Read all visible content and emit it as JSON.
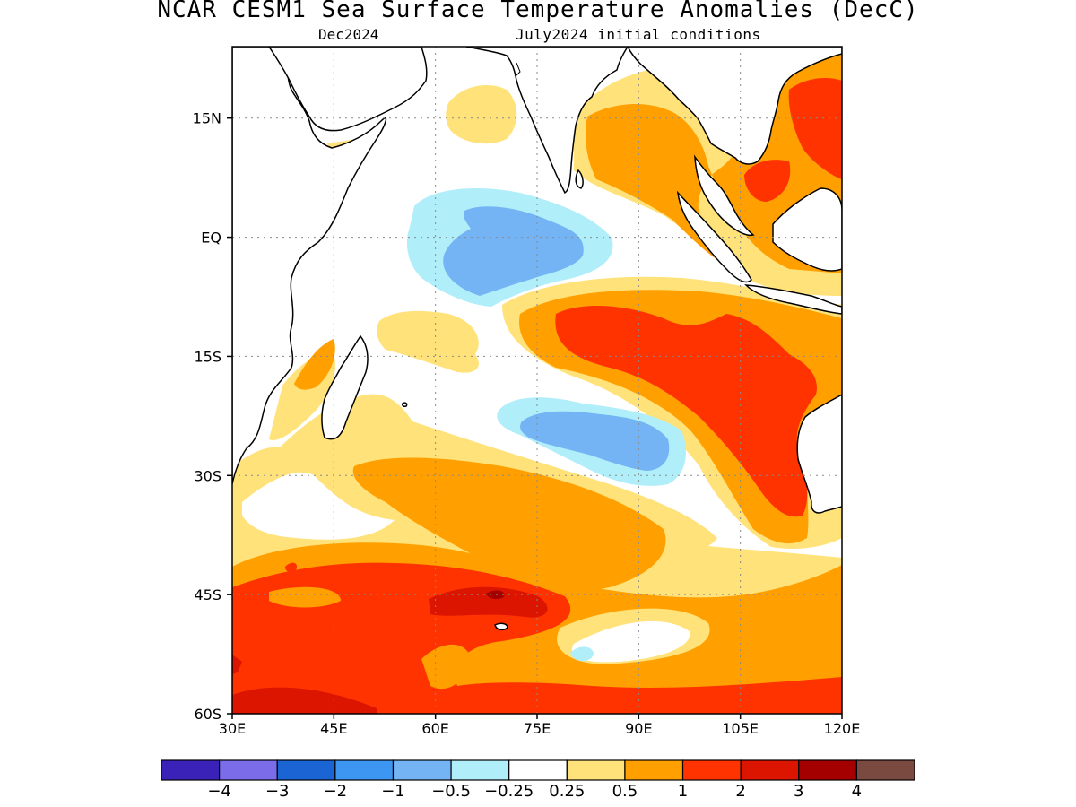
{
  "title": "NCAR_CESM1 Sea Surface Temperature Anomalies (DecC)",
  "subtitle_left": "Dec2024",
  "subtitle_right": "July2024 initial conditions",
  "axes": {
    "lon_ticks": [
      "30E",
      "45E",
      "60E",
      "75E",
      "90E",
      "105E",
      "120E"
    ],
    "lat_ticks": [
      "15N",
      "EQ",
      "15S",
      "30S",
      "45S",
      "60S"
    ],
    "lon_range": [
      30,
      120
    ],
    "lat_range": [
      -60,
      24
    ],
    "grid": "dotted"
  },
  "colorbar": {
    "labels": [
      "−4",
      "−3",
      "−2",
      "−1",
      "−0.5",
      "−0.25",
      "0.25",
      "0.5",
      "1",
      "2",
      "3",
      "4"
    ],
    "colors": [
      "#3a22b8",
      "#7b6cea",
      "#1a64d4",
      "#3c96f2",
      "#74b4f4",
      "#b0eefa",
      "#ffffff",
      "#ffe27a",
      "#ffa000",
      "#ff3300",
      "#dc1500",
      "#a40000",
      "#7a4a40"
    ]
  },
  "palette": {
    "land": "#ffffff",
    "coast": "#000000"
  }
}
